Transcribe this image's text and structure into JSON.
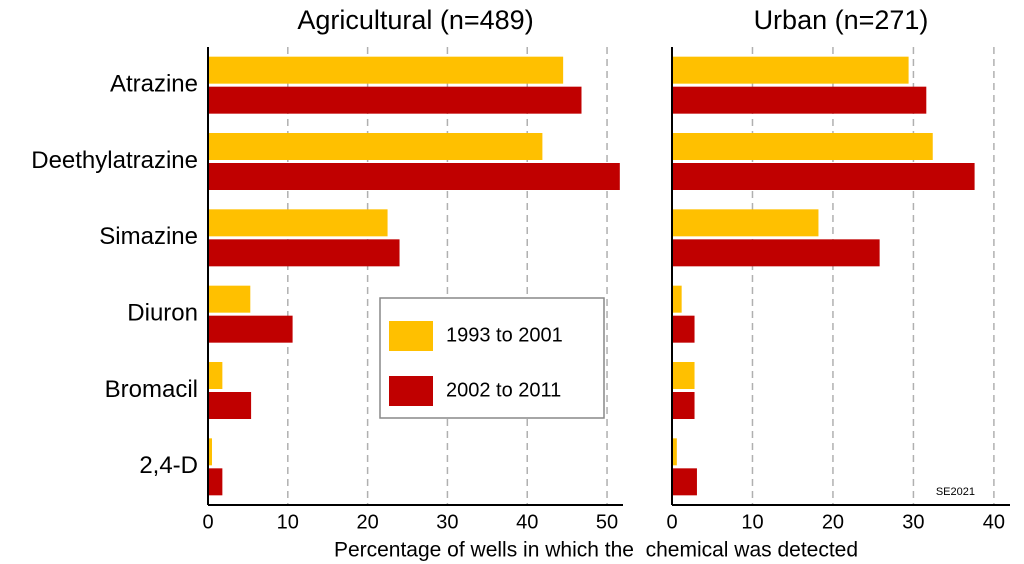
{
  "chart_data": [
    {
      "type": "bar",
      "orientation": "horizontal",
      "title": "Agricultural (n=489)",
      "categories": [
        "Atrazine",
        "Deethylatrazine",
        "Simazine",
        "Diuron",
        "Bromacil",
        "2,4-D"
      ],
      "series": [
        {
          "name": "1993 to 2001",
          "color": "#ffc000",
          "values": [
            44.5,
            41.9,
            22.5,
            5.3,
            1.8,
            0.5
          ]
        },
        {
          "name": "2002 to 2011",
          "color": "#c00000",
          "values": [
            46.8,
            51.6,
            24,
            10.6,
            5.4,
            1.8
          ]
        }
      ],
      "xlim": [
        0,
        52
      ],
      "xticks": [
        0,
        10,
        20,
        30,
        40,
        50
      ],
      "grid": true,
      "xlabel": "Percentage of wells in which the  chemical was detected"
    },
    {
      "type": "bar",
      "orientation": "horizontal",
      "title": "Urban (n=271)",
      "series": [
        {
          "color": "#ffc000",
          "values": [
            29.4,
            32.4,
            18.2,
            1.2,
            2.8,
            0.6
          ]
        },
        {
          "color": "#c00000",
          "values": [
            31.6,
            37.6,
            25.8,
            2.8,
            2.8,
            3.1
          ]
        }
      ],
      "xlim": [
        0,
        42
      ],
      "xticks": [
        0,
        10,
        20,
        30,
        40
      ],
      "grid": true,
      "annotation": "SE2021"
    }
  ]
}
